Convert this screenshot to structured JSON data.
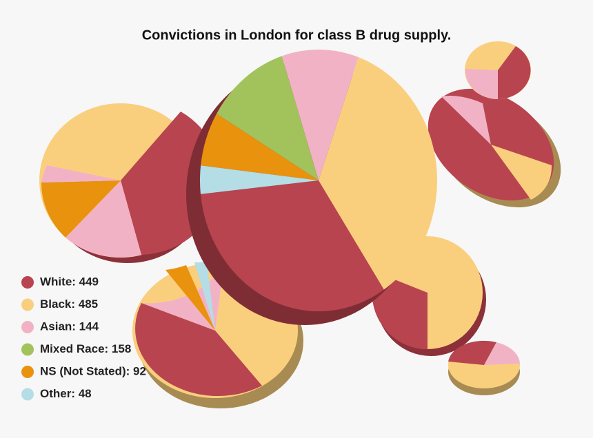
{
  "chart_data": {
    "type": "pie",
    "title": "Convictions in London for class B drug supply.",
    "values": [
      449,
      485,
      144,
      158,
      92,
      48
    ],
    "value_labels": [
      "White: 449",
      "Black: 485",
      "Asian: 144",
      "Mixed Race: 158",
      "NS (Not Stated): 92",
      "Other: 48"
    ],
    "colors": [
      "#b8444f",
      "#f9cf7e",
      "#f2b2c6",
      "#a2c25c",
      "#e8920e",
      "#b5dde6"
    ],
    "legend": "left"
  }
}
